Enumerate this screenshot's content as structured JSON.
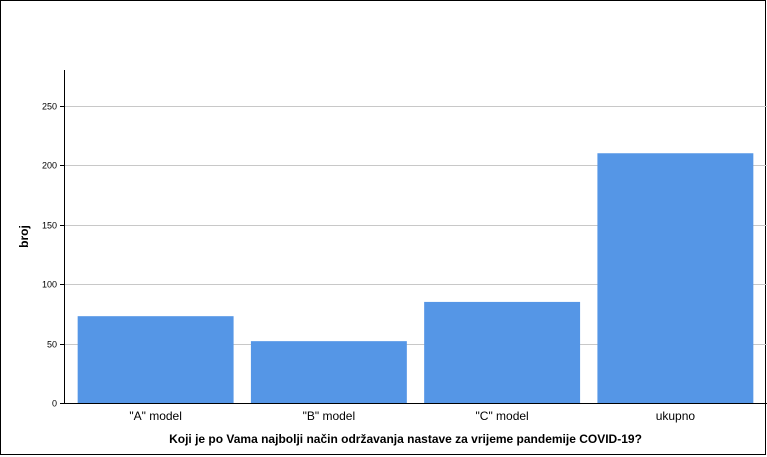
{
  "chart_data": {
    "type": "bar",
    "categories": [
      "\"A\" model",
      "\"B\" model",
      "\"C\" model",
      "ukupno"
    ],
    "values": [
      73,
      52,
      85,
      210
    ],
    "xlabel": "Koji je po Vama najbolji način održavanja nastave za vrijeme pandemije COVID-19?",
    "ylabel": "broj",
    "ylim": [
      0,
      280
    ],
    "yticks": [
      0,
      50,
      100,
      150,
      200,
      250
    ],
    "grid": true,
    "bar_color": "#5596e6"
  }
}
